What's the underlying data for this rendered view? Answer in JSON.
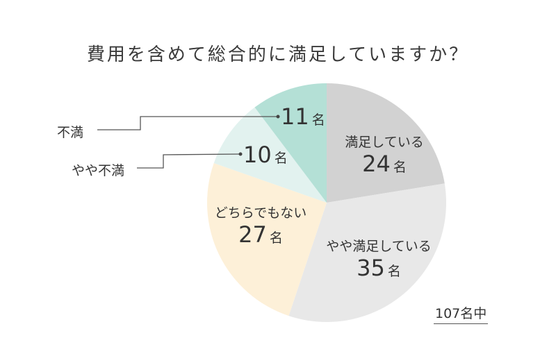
{
  "title": "費用を含めて総合的に満足していますか？",
  "unit": "名",
  "total_label": "107名中",
  "slices": [
    {
      "label": "満足している",
      "value": "24",
      "color": "#d2d2d2"
    },
    {
      "label": "やや満足している",
      "value": "35",
      "color": "#e8e8e8"
    },
    {
      "label": "どちらでもない",
      "value": "27",
      "color": "#fdf0d8"
    },
    {
      "label": "やや不満",
      "value": "10",
      "color": "#e2f2ef"
    },
    {
      "label": "不満",
      "value": "11",
      "color": "#b4e0d6"
    }
  ],
  "chart_data": {
    "type": "pie",
    "title": "費用を含めて総合的に満足していますか？",
    "categories": [
      "満足している",
      "やや満足している",
      "どちらでもない",
      "やや不満",
      "不満"
    ],
    "values": [
      24,
      35,
      27,
      10,
      11
    ],
    "unit": "名",
    "total": 107,
    "annotation": "107名中",
    "colors": [
      "#d2d2d2",
      "#e8e8e8",
      "#fdf0d8",
      "#e2f2ef",
      "#b4e0d6"
    ],
    "start_angle": "12 o'clock, clockwise",
    "legend": "none (labels on slices / leader lines)"
  }
}
